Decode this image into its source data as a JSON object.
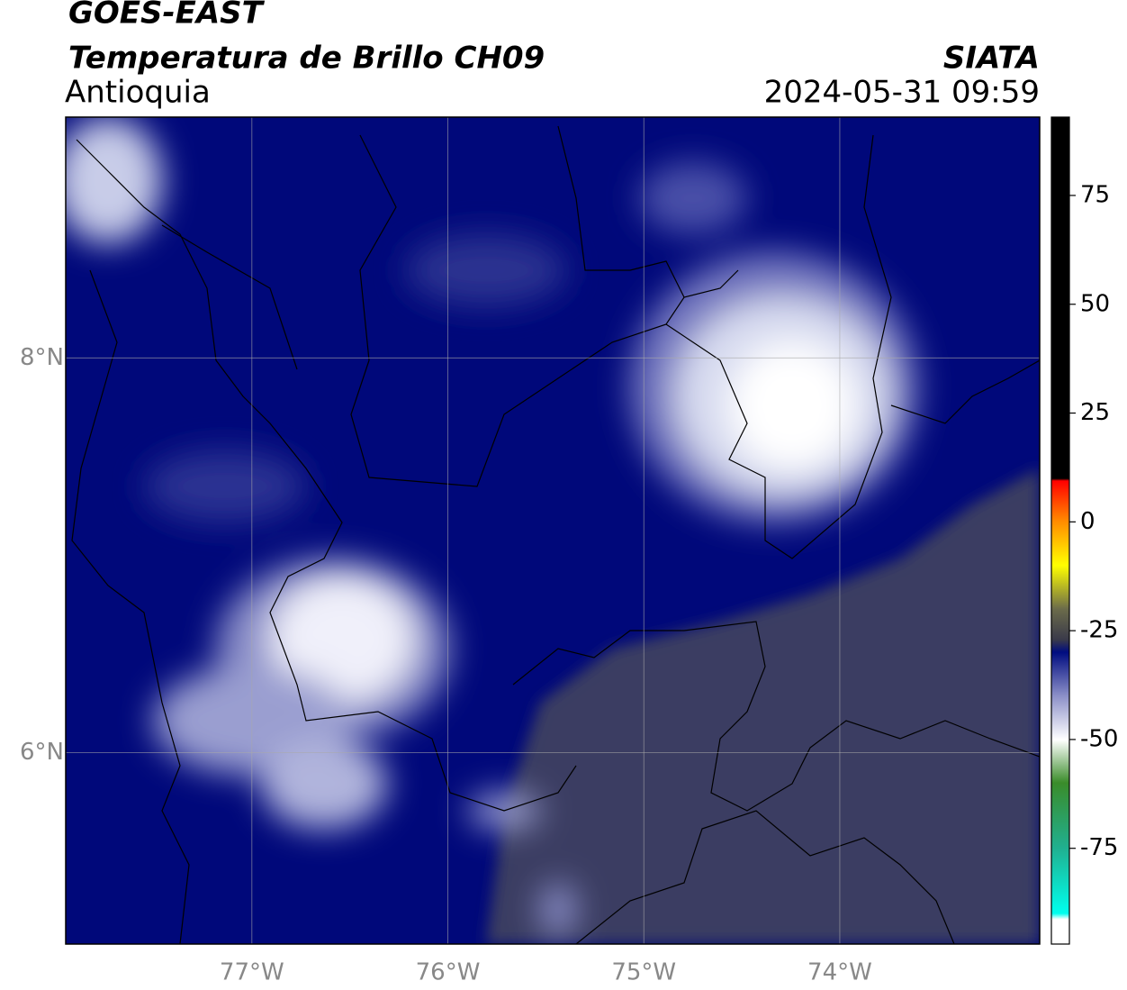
{
  "header": {
    "title": "GOES-EAST",
    "subtitle": "Temperatura de Brillo CH09",
    "region": "Antioquia",
    "source": "SIATA",
    "timestamp": "2024-05-31 09:59"
  },
  "map": {
    "xlim": [
      -77.95,
      -72.98
    ],
    "ylim": [
      5.03,
      9.22
    ],
    "xticks": [
      {
        "value": -77,
        "label": "77°W"
      },
      {
        "value": -76,
        "label": "76°W"
      },
      {
        "value": -75,
        "label": "75°W"
      },
      {
        "value": -74,
        "label": "74°W"
      }
    ],
    "yticks": [
      {
        "value": 8,
        "label": "8°N"
      },
      {
        "value": 6,
        "label": "6°N"
      }
    ],
    "grid": true
  },
  "colorbar": {
    "lim": [
      -97,
      93
    ],
    "ticks": [
      75,
      50,
      25,
      0,
      -25,
      -50,
      -75
    ]
  }
}
